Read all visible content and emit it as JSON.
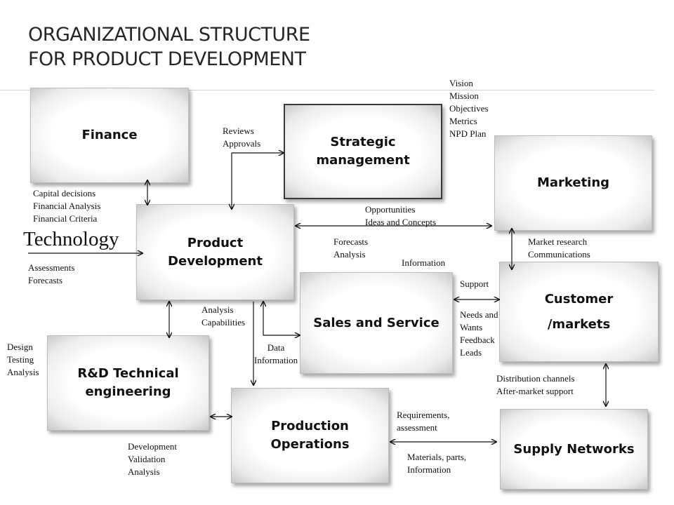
{
  "title": {
    "line1": "ORGANIZATIONAL STRUCTURE",
    "line2": "FOR PRODUCT DEVELOPMENT"
  },
  "boxes": {
    "finance": [
      "Finance"
    ],
    "strategic_management": [
      "Strategic",
      "management"
    ],
    "marketing": [
      "Marketing"
    ],
    "product_development": [
      "Product",
      "Development"
    ],
    "sales_and_service": [
      "Sales and Service"
    ],
    "customer_markets": [
      "Customer",
      "/markets"
    ],
    "rd_technical_engineering": [
      "R&D Technical",
      "engineering"
    ],
    "production_operations": [
      "Production",
      "Operations"
    ],
    "supply_networks": [
      "Supply Networks"
    ]
  },
  "technology_label": "Technology",
  "labels": {
    "reviews_approvals": [
      "Reviews",
      "Approvals"
    ],
    "vision_block": [
      "Vision",
      "Mission",
      "Objectives",
      "Metrics",
      "NPD Plan"
    ],
    "capital_block": [
      "Capital decisions",
      "Financial  Analysis",
      "Financial  Criteria"
    ],
    "opportunities_block": [
      "Opportunities",
      "Ideas and Concepts"
    ],
    "forecasts_analysis": [
      "Forecasts",
      "Analysis"
    ],
    "market_research_block": [
      "Market research",
      "Communications"
    ],
    "information": [
      "Information"
    ],
    "assessments_forecasts": [
      "Assessments",
      "Forecasts"
    ],
    "support": [
      "Support"
    ],
    "analysis_capabilities": [
      "Analysis",
      "Capabilities"
    ],
    "needs_block": [
      "Needs and",
      "Wants",
      "Feedback",
      "Leads"
    ],
    "design_block": [
      "Design",
      "Testing",
      "Analysis"
    ],
    "data_information": [
      "Data",
      "Information"
    ],
    "distribution_block": [
      "Distribution  channels",
      "After-market support"
    ],
    "requirements_block": [
      "Requirements,",
      "assessment"
    ],
    "development_block": [
      "Development",
      "Validation",
      "Analysis"
    ],
    "materials_block": [
      "Materials, parts,",
      "Information"
    ]
  }
}
